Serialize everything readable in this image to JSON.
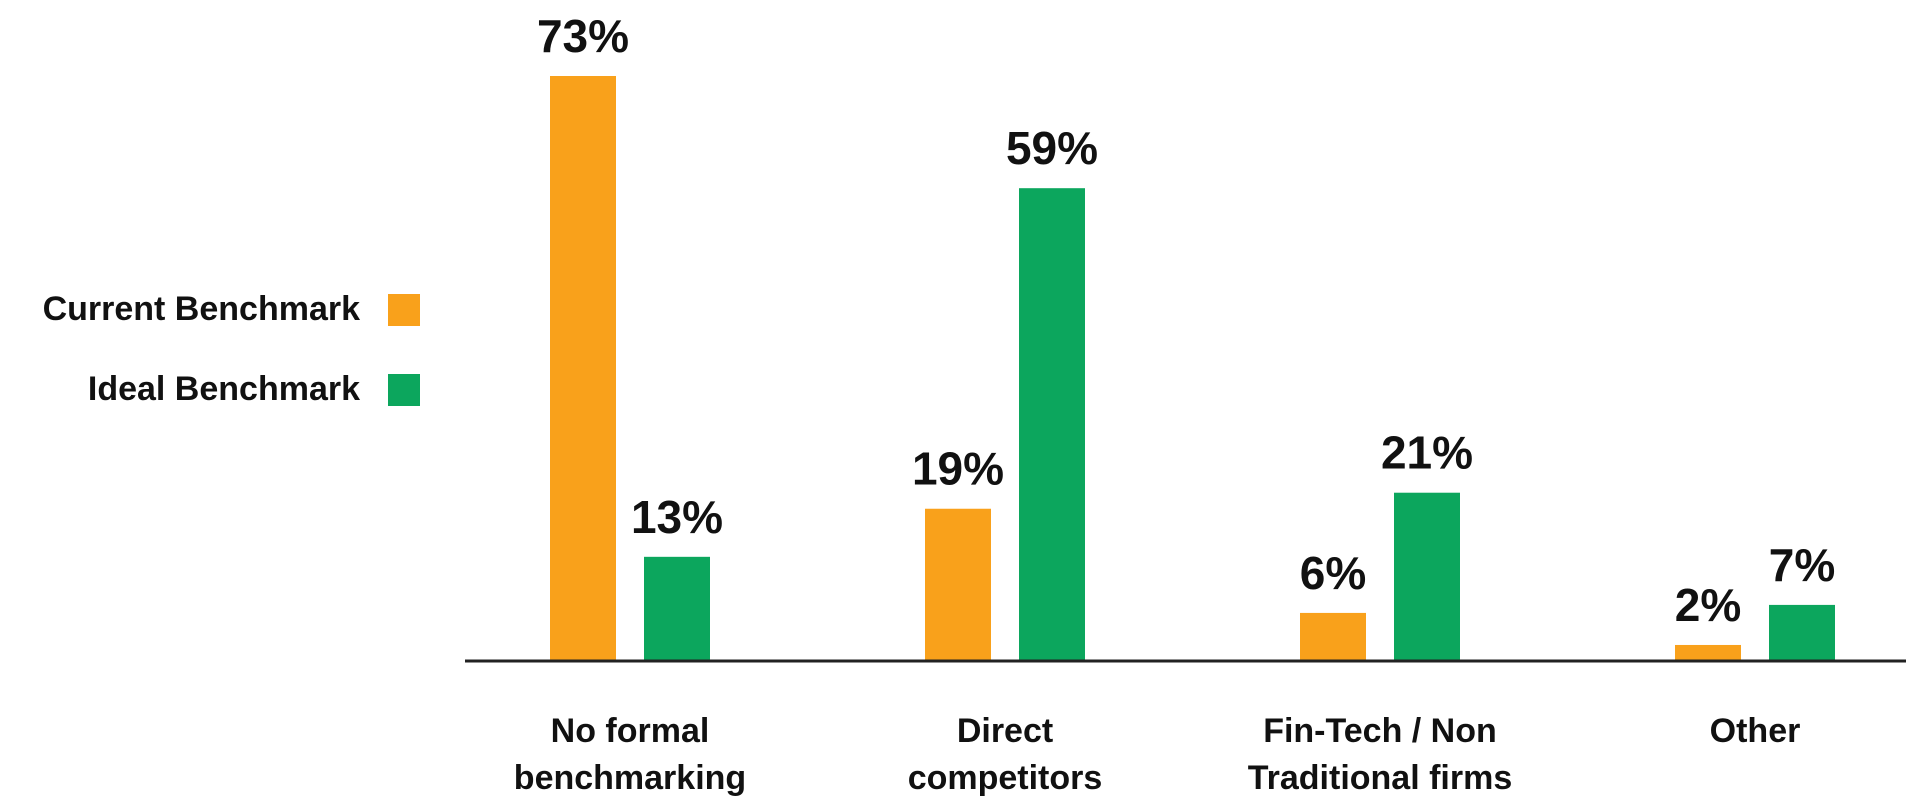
{
  "legend": {
    "current_label": "Current Benchmark",
    "ideal_label": "Ideal Benchmark"
  },
  "colors": {
    "current": "#F9A11B",
    "ideal": "#0CA65D",
    "axis": "#222222"
  },
  "chart_data": {
    "type": "bar",
    "categories": [
      [
        "No formal",
        "benchmarking"
      ],
      [
        "Direct",
        "competitors"
      ],
      [
        "Fin-Tech / Non",
        "Traditional firms"
      ],
      [
        "Other"
      ]
    ],
    "series": [
      {
        "name": "Current Benchmark",
        "values": [
          73,
          19,
          6,
          2
        ],
        "labels": [
          "73%",
          "19%",
          "6%",
          "2%"
        ]
      },
      {
        "name": "Ideal Benchmark",
        "values": [
          13,
          59,
          21,
          7
        ],
        "labels": [
          "13%",
          "59%",
          "21%",
          "7%"
        ]
      }
    ],
    "ylim": [
      0,
      73
    ],
    "grid": false,
    "legend_position": "left"
  }
}
